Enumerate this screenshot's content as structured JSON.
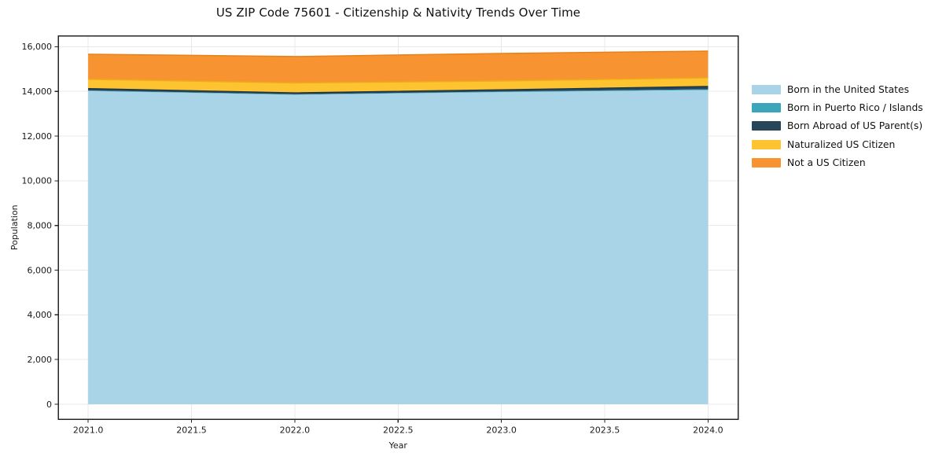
{
  "title": "US ZIP Code 75601 - Citizenship & Nativity Trends Over Time",
  "chart_data": {
    "type": "area",
    "stacked": true,
    "title": "US ZIP Code 75601 - Citizenship & Nativity Trends Over Time",
    "xlabel": "Year",
    "ylabel": "Population",
    "x": [
      2021,
      2022,
      2023,
      2024
    ],
    "series": [
      {
        "name": "Born in the United States",
        "color": "#a9d3e7",
        "edge": null,
        "edge_width": 0,
        "values": [
          14020,
          13850,
          13970,
          14060
        ]
      },
      {
        "name": "Born in Puerto Rico / Islands",
        "color": "#3ba6bb",
        "edge": null,
        "edge_width": 0,
        "values": [
          25,
          20,
          25,
          35
        ]
      },
      {
        "name": "Born Abroad of US Parent(s)",
        "color": "#28465a",
        "edge": "#1d3442",
        "edge_width": 1.2,
        "values": [
          85,
          70,
          80,
          130
        ]
      },
      {
        "name": "Naturalized US Citizen",
        "color": "#fdc331",
        "edge": "#eead18",
        "edge_width": 1.5,
        "values": [
          410,
          440,
          390,
          380
        ]
      },
      {
        "name": "Not a US Citizen",
        "color": "#f79330",
        "edge": "#e6811c",
        "edge_width": 1.5,
        "values": [
          1125,
          1180,
          1235,
          1200
        ]
      }
    ],
    "totals": [
      15665,
      15560,
      15700,
      15805
    ],
    "x_ticks": [
      {
        "value": 2021.0,
        "label": "2021.0"
      },
      {
        "value": 2021.5,
        "label": "2021.5"
      },
      {
        "value": 2022.0,
        "label": "2022.0"
      },
      {
        "value": 2022.5,
        "label": "2022.5"
      },
      {
        "value": 2023.0,
        "label": "2023.0"
      },
      {
        "value": 2023.5,
        "label": "2023.5"
      },
      {
        "value": 2024.0,
        "label": "2024.0"
      }
    ],
    "y_ticks": [
      {
        "value": 0,
        "label": "0"
      },
      {
        "value": 2000,
        "label": "2,000"
      },
      {
        "value": 4000,
        "label": "4,000"
      },
      {
        "value": 6000,
        "label": "6,000"
      },
      {
        "value": 8000,
        "label": "8,000"
      },
      {
        "value": 10000,
        "label": "10,000"
      },
      {
        "value": 12000,
        "label": "12,000"
      },
      {
        "value": 14000,
        "label": "14,000"
      },
      {
        "value": 16000,
        "label": "16,000"
      }
    ],
    "xlim": [
      2020.855,
      2024.145
    ],
    "ylim": [
      -670,
      16490
    ],
    "grid": true,
    "grid_color": "#e8e8e8",
    "axis_color": "#262626",
    "text_color": "#1a1a1a",
    "legend_position": "right"
  }
}
